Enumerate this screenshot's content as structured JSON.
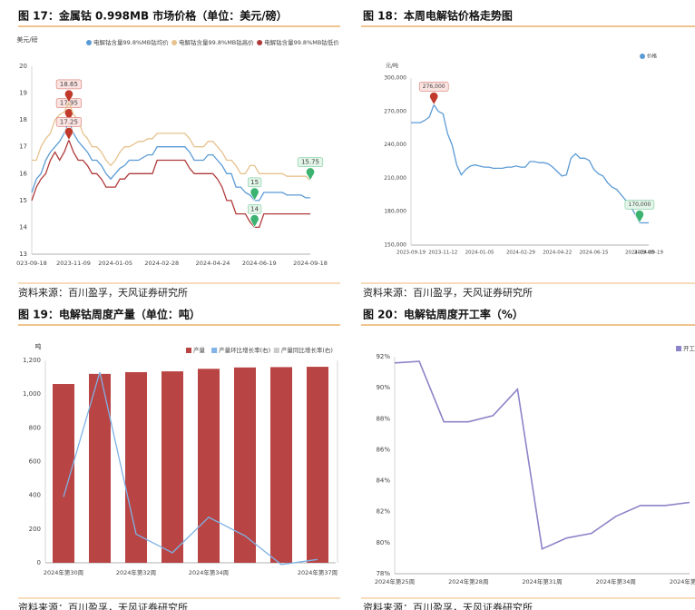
{
  "chart_data": [
    {
      "type": "line",
      "title": "图 17：金属钴 0.998MB 市场价格（单位：美元/磅）",
      "source": "资料来源：百川盈孚，天风证券研究所",
      "y_label": "美元/磅",
      "ylim": [
        13,
        20
      ],
      "yticks": [
        13,
        14,
        15,
        16,
        17,
        18,
        19,
        20
      ],
      "grid": false,
      "markers": [
        "max",
        "min"
      ],
      "categories": [
        "023-09-18",
        null,
        null,
        null,
        null,
        null,
        null,
        null,
        null,
        "2023-11-09",
        null,
        null,
        null,
        null,
        null,
        null,
        null,
        null,
        "2024-01-05",
        null,
        null,
        null,
        null,
        null,
        null,
        null,
        null,
        null,
        "2024-02-28",
        null,
        null,
        null,
        null,
        null,
        null,
        null,
        null,
        null,
        null,
        "2024-04-24",
        null,
        null,
        null,
        null,
        null,
        null,
        null,
        null,
        null,
        "2024-06-19",
        null,
        null,
        null,
        null,
        null,
        null,
        null,
        null,
        null,
        null,
        "2024-09-18"
      ],
      "series": [
        {
          "name": "电解钴含量99.8%MB钴均价",
          "color": "#5b9bd5",
          "values": [
            15.3,
            15.8,
            16.0,
            16.5,
            16.8,
            17.0,
            17.2,
            17.5,
            17.95,
            17.5,
            17.2,
            17.0,
            16.8,
            16.5,
            16.5,
            16.3,
            16.0,
            15.8,
            16.0,
            16.2,
            16.3,
            16.5,
            16.5,
            16.5,
            16.6,
            16.7,
            16.7,
            17.0,
            17.0,
            17.0,
            17.0,
            17.0,
            17.0,
            17.0,
            16.8,
            16.5,
            16.5,
            16.5,
            16.7,
            16.7,
            16.5,
            16.3,
            16.0,
            16.0,
            15.5,
            15.5,
            15.3,
            15.2,
            15.0,
            15.0,
            15.3,
            15.3,
            15.3,
            15.3,
            15.3,
            15.2,
            15.2,
            15.2,
            15.2,
            15.1,
            15.1
          ]
        },
        {
          "name": "电解钴含量99.8%MB钴高价",
          "color": "#e6c28e",
          "values": [
            16.5,
            16.5,
            17.0,
            17.3,
            17.5,
            18.0,
            18.2,
            18.3,
            18.65,
            18.2,
            18.0,
            17.5,
            17.3,
            17.0,
            17.0,
            16.8,
            16.5,
            16.3,
            16.5,
            16.8,
            17.0,
            17.0,
            17.1,
            17.2,
            17.2,
            17.3,
            17.3,
            17.5,
            17.5,
            17.5,
            17.5,
            17.5,
            17.5,
            17.5,
            17.3,
            17.0,
            17.0,
            17.0,
            17.2,
            17.2,
            17.0,
            16.8,
            16.5,
            16.5,
            16.3,
            16.0,
            16.0,
            16.3,
            16.3,
            16.0,
            16.0,
            16.0,
            16.0,
            16.0,
            16.0,
            15.9,
            15.9,
            15.9,
            15.9,
            15.9,
            15.75
          ]
        },
        {
          "name": "电解钴含量99.8%MB钴低价",
          "color": "#b03a3a",
          "values": [
            15.0,
            15.5,
            15.8,
            16.0,
            16.5,
            16.8,
            16.5,
            16.8,
            17.25,
            16.8,
            16.5,
            16.5,
            16.3,
            16.0,
            16.0,
            15.8,
            15.5,
            15.5,
            15.5,
            15.8,
            15.8,
            16.0,
            16.0,
            16.0,
            16.0,
            16.0,
            16.0,
            16.5,
            16.5,
            16.5,
            16.5,
            16.5,
            16.5,
            16.5,
            16.2,
            16.0,
            16.0,
            16.0,
            16.0,
            16.0,
            15.8,
            15.5,
            15.0,
            15.0,
            14.5,
            14.5,
            14.5,
            14.2,
            14.0,
            14.0,
            14.5,
            14.5,
            14.5,
            14.5,
            14.5,
            14.5,
            14.5,
            14.5,
            14.5,
            14.5,
            14.5
          ]
        }
      ]
    },
    {
      "type": "line",
      "title": "图 18：本周电解钴价格走势图",
      "source": "资料来源：百川盈孚，天风证券研究所",
      "y_label": "元/吨",
      "ylim": [
        150000,
        300000
      ],
      "yticks": [
        {
          "value": 150000,
          "label": "150,000"
        },
        {
          "value": 180000,
          "label": "180,000"
        },
        {
          "value": 210000,
          "label": "210,000"
        },
        {
          "value": 240000,
          "label": "240,000"
        },
        {
          "value": 270000,
          "label": "270,000"
        },
        {
          "value": 300000,
          "label": "300,000"
        }
      ],
      "grid": false,
      "markers": [
        "max",
        "min"
      ],
      "categories": [
        "2023-09-19",
        null,
        null,
        null,
        null,
        null,
        null,
        "2023-11-12",
        null,
        null,
        null,
        null,
        null,
        null,
        null,
        "2024-01-05",
        null,
        null,
        null,
        null,
        null,
        null,
        null,
        null,
        "2024-02-29",
        null,
        null,
        null,
        null,
        null,
        null,
        null,
        "2024-04-22",
        null,
        null,
        null,
        null,
        null,
        null,
        null,
        "2024-06-15",
        null,
        null,
        null,
        null,
        null,
        null,
        null,
        null,
        null,
        "2024-09-08",
        null,
        "2024-09-19"
      ],
      "series": [
        {
          "name": "价格",
          "color": "#5b9bd5",
          "values": [
            260000,
            260000,
            260000,
            262000,
            265000,
            276000,
            270000,
            268000,
            250000,
            240000,
            222000,
            213000,
            218000,
            221000,
            222000,
            221000,
            220000,
            220000,
            219000,
            219000,
            219000,
            220000,
            220000,
            221000,
            220000,
            220000,
            225000,
            225000,
            224000,
            224000,
            223000,
            220000,
            216000,
            212000,
            213000,
            228000,
            232000,
            228000,
            228000,
            226000,
            218000,
            214000,
            212000,
            206000,
            202000,
            200000,
            195000,
            190000,
            185000,
            178000,
            170000,
            170000,
            170000
          ],
          "value_labels": [
            null,
            null,
            null,
            null,
            null,
            "276,000",
            null,
            null,
            null,
            null,
            null,
            null,
            null,
            null,
            null,
            null,
            null,
            null,
            null,
            null,
            null,
            null,
            null,
            null,
            null,
            null,
            null,
            null,
            null,
            null,
            null,
            null,
            null,
            null,
            null,
            null,
            null,
            null,
            null,
            null,
            null,
            null,
            null,
            null,
            null,
            null,
            null,
            null,
            null,
            null,
            "170,000",
            null,
            null
          ]
        }
      ]
    },
    {
      "type": "bar",
      "title": "图 19：电解钴周度产量（单位：吨）",
      "source": "资料来源：百川盈孚，天风证券研究所",
      "y_label": "吨",
      "ylim": [
        0,
        1200
      ],
      "yticks": [
        0,
        200,
        400,
        600,
        800,
        {
          "value": 1000,
          "label": "1,000"
        },
        {
          "value": 1200,
          "label": "1,200"
        }
      ],
      "y2lim": [
        0,
        12
      ],
      "grid": false,
      "categories": [
        "2024年第30周",
        null,
        "2024年第32周",
        null,
        "2024年第34周",
        null,
        null,
        "2024年第37周"
      ],
      "series": [
        {
          "name": "产量",
          "type": "bar",
          "color": "#b94444",
          "values": [
            1060,
            1120,
            1130,
            1135,
            1150,
            1158,
            1160,
            1162
          ]
        },
        {
          "name": "产量环比增长率(右)",
          "type": "line",
          "axis": "y2",
          "color": "#7fb2e5",
          "values": [
            3.9,
            11.3,
            1.7,
            0.6,
            2.7,
            1.6,
            -0.1,
            0.2
          ]
        }
      ],
      "hidden_legend": [
        {
          "name": "产量同比增长率(右)",
          "color": "#cccccc"
        }
      ]
    },
    {
      "type": "line",
      "title": "图 20：电解钴周度开工率（%）",
      "source": "资料来源：百川盈孚，天风证券研究所",
      "ylim": [
        78,
        92
      ],
      "yticks": [
        {
          "value": 78,
          "label": "78%"
        },
        {
          "value": 80,
          "label": "80%"
        },
        {
          "value": 82,
          "label": "82%"
        },
        {
          "value": 84,
          "label": "84%"
        },
        {
          "value": 86,
          "label": "86%"
        },
        {
          "value": 88,
          "label": "88%"
        },
        {
          "value": 90,
          "label": "90%"
        },
        {
          "value": 92,
          "label": "92%"
        }
      ],
      "grid": false,
      "categories": [
        "2024年第25周",
        null,
        null,
        "2024年第28周",
        null,
        null,
        "2024年第31周",
        null,
        null,
        "2024年第34周",
        null,
        null,
        "2024年第37周"
      ],
      "series": [
        {
          "name": "开工率",
          "color": "#8c84c8",
          "values": [
            91.6,
            91.7,
            87.8,
            87.8,
            88.2,
            89.9,
            79.6,
            80.3,
            80.6,
            81.7,
            82.4,
            82.4,
            82.6
          ]
        }
      ]
    }
  ]
}
